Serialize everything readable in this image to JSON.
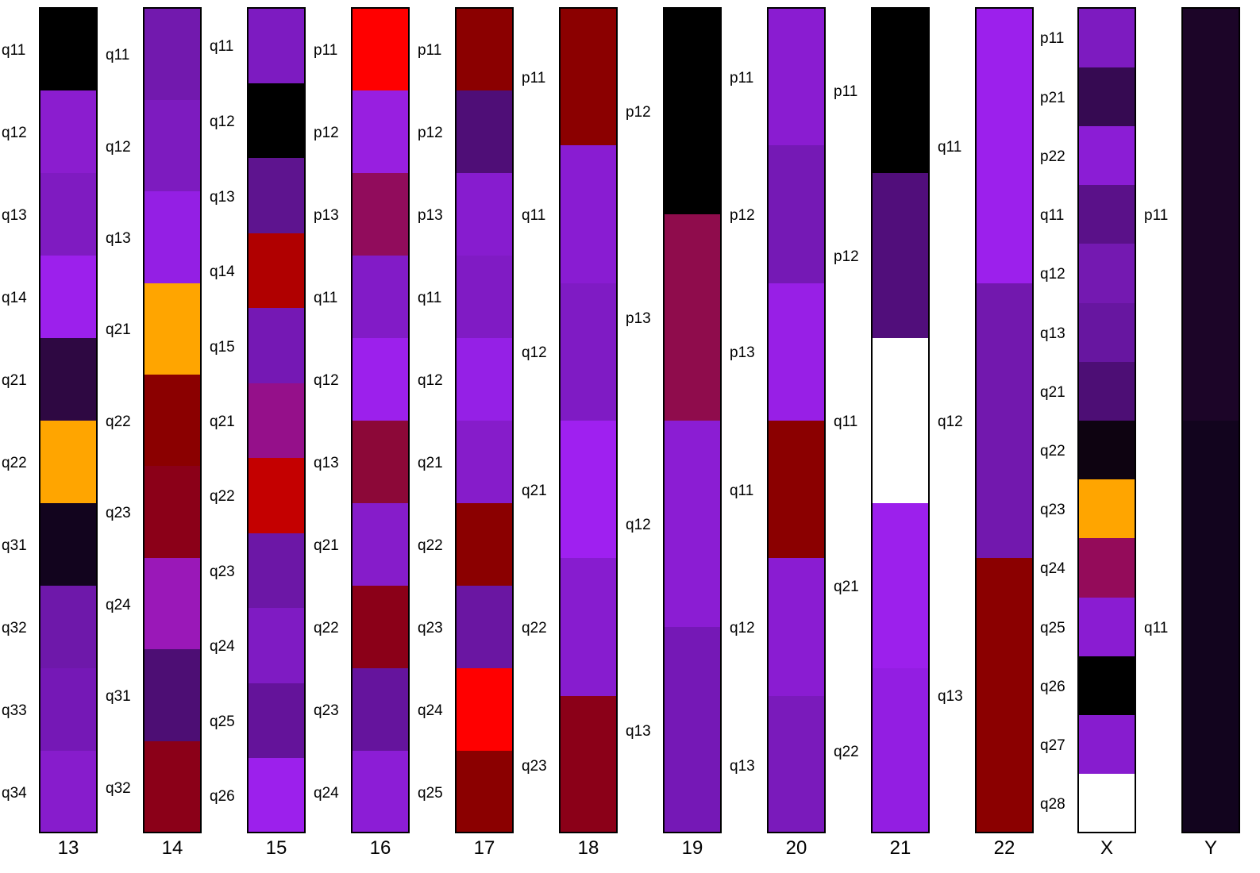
{
  "chart_data": {
    "type": "heatmap",
    "title": "",
    "chromosomes": [
      {
        "name": "13",
        "bands": [
          {
            "label": "q11",
            "color": "#000000"
          },
          {
            "label": "q12",
            "color": "#8b1dcf"
          },
          {
            "label": "q13",
            "color": "#7f1bc1"
          },
          {
            "label": "q14",
            "color": "#9c20ec"
          },
          {
            "label": "q21",
            "color": "#2e0842"
          },
          {
            "label": "q22",
            "color": "#ffa500"
          },
          {
            "label": "q31",
            "color": "#12041e"
          },
          {
            "label": "q32",
            "color": "#6e18aa"
          },
          {
            "label": "q33",
            "color": "#7518b6"
          },
          {
            "label": "q34",
            "color": "#871ccc"
          }
        ]
      },
      {
        "name": "14",
        "bands": [
          {
            "label": "q11",
            "color": "#7219ae"
          },
          {
            "label": "q12",
            "color": "#7d1bbf"
          },
          {
            "label": "q13",
            "color": "#941fe4"
          },
          {
            "label": "q21",
            "color": "#ffa500"
          },
          {
            "label": "q22",
            "color": "#8b0000"
          },
          {
            "label": "q23",
            "color": "#8b0018"
          },
          {
            "label": "q24",
            "color": "#9a18b8"
          },
          {
            "label": "q31",
            "color": "#4d0e74"
          },
          {
            "label": "q32",
            "color": "#8b0018"
          }
        ]
      },
      {
        "name": "15",
        "bands": [
          {
            "label": "q11",
            "color": "#7d1bc1"
          },
          {
            "label": "q12",
            "color": "#000000"
          },
          {
            "label": "q13",
            "color": "#5e148f"
          },
          {
            "label": "q14",
            "color": "#b00000"
          },
          {
            "label": "q15",
            "color": "#7518b4"
          },
          {
            "label": "q21",
            "color": "#95108a"
          },
          {
            "label": "q22",
            "color": "#c40000"
          },
          {
            "label": "q23",
            "color": "#6c17a6"
          },
          {
            "label": "q24",
            "color": "#7f1bc3"
          },
          {
            "label": "q25",
            "color": "#64139a"
          },
          {
            "label": "q26",
            "color": "#9c20ec"
          }
        ]
      },
      {
        "name": "16",
        "bands": [
          {
            "label": "p11",
            "color": "#ff0000"
          },
          {
            "label": "p12",
            "color": "#981fe0"
          },
          {
            "label": "p13",
            "color": "#910c5c"
          },
          {
            "label": "q11",
            "color": "#821bc7"
          },
          {
            "label": "q12",
            "color": "#9c20ec"
          },
          {
            "label": "q21",
            "color": "#8c0838"
          },
          {
            "label": "q22",
            "color": "#861cca"
          },
          {
            "label": "q23",
            "color": "#8b0018"
          },
          {
            "label": "q24",
            "color": "#65149d"
          },
          {
            "label": "q25",
            "color": "#8c1dd6"
          }
        ]
      },
      {
        "name": "17",
        "bands": [
          {
            "label": "p11",
            "color": "#8b0000"
          },
          {
            "label": "p12",
            "color": "#4f0e77"
          },
          {
            "label": "p13",
            "color": "#871ccf"
          },
          {
            "label": "q11",
            "color": "#801bc4"
          },
          {
            "label": "q12",
            "color": "#9520e6"
          },
          {
            "label": "q21",
            "color": "#861cca"
          },
          {
            "label": "q22",
            "color": "#8b0000"
          },
          {
            "label": "q23",
            "color": "#6a16a2"
          },
          {
            "label": "q24",
            "color": "#ff0000"
          },
          {
            "label": "q25",
            "color": "#8b0000"
          }
        ]
      },
      {
        "name": "18",
        "bands": [
          {
            "label": "p11",
            "color": "#8b0000"
          },
          {
            "label": "p12",
            "color": "#891cd2"
          },
          {
            "label": "p13",
            "color": "#7f1bc4"
          },
          {
            "label": "q12",
            "color": "#9f20f0"
          },
          {
            "label": "q13",
            "color": "#871ccf"
          },
          {
            "label": "q21",
            "color": "#8b0018"
          }
        ]
      },
      {
        "name": "19",
        "bands": [
          {
            "label": "p11",
            "color": "#000000"
          },
          {
            "label": "p12",
            "color": "#8f0c4c"
          },
          {
            "label": "p13",
            "color": "#8b1dd3"
          },
          {
            "label": "q11",
            "color": "#7518b6"
          }
        ]
      },
      {
        "name": "20",
        "bands": [
          {
            "label": "q12",
            "color": "#8a1cd1"
          },
          {
            "label": "q13",
            "color": "#7519b5"
          },
          {
            "label": "p11",
            "color": "#981fe6"
          },
          {
            "label": "p12",
            "color": "#8b0000"
          },
          {
            "label": "q11",
            "color": "#8a1cd2"
          },
          {
            "label": "q21",
            "color": "#7a1abb"
          }
        ]
      },
      {
        "name": "21",
        "bands": [
          {
            "label": "q22",
            "color": "#000000"
          },
          {
            "label": "q11",
            "color": "#510e7b"
          },
          {
            "label": "q12",
            "color": "#ffffff"
          },
          {
            "label": "q13",
            "color": "#9c20ec"
          },
          {
            "label": "",
            "color": "#931ee2"
          }
        ]
      },
      {
        "name": "22",
        "bands": [
          {
            "label": "p11",
            "color": "#9c20ec"
          },
          {
            "label": "p21",
            "color": "#7218ae"
          },
          {
            "label": "p22",
            "color": "#8b0000"
          }
        ]
      },
      {
        "name": "X",
        "bands": [
          {
            "label": "q11",
            "color": "#7d1bc0"
          },
          {
            "label": "q12",
            "color": "#360a52"
          },
          {
            "label": "q13",
            "color": "#8b1dd5"
          },
          {
            "label": "q21",
            "color": "#5a1189"
          },
          {
            "label": "q22",
            "color": "#7419b1"
          },
          {
            "label": "q23",
            "color": "#6716a0"
          },
          {
            "label": "q24",
            "color": "#4d0e75"
          },
          {
            "label": "q25",
            "color": "#0e0311"
          },
          {
            "label": "q26",
            "color": "#ffa500"
          },
          {
            "label": "q27",
            "color": "#940b5a"
          },
          {
            "label": "q28",
            "color": "#8a1cd2"
          },
          {
            "label": "",
            "color": "#000000"
          },
          {
            "label": "",
            "color": "#871ccf"
          }
        ]
      },
      {
        "name": "Y",
        "bands": [
          {
            "label": "p11",
            "color": "#1c0528"
          },
          {
            "label": "q11",
            "color": "#12041e"
          }
        ]
      }
    ],
    "label_columns": [
      {
        "labels": [
          "q11",
          "q12",
          "q13",
          "q14",
          "q21",
          "q22",
          "q31",
          "q32",
          "q33",
          "q34"
        ]
      },
      {
        "labels": [
          "q11",
          "q12",
          "q13",
          "q21",
          "q22",
          "q23",
          "q24",
          "q31",
          "q32"
        ]
      },
      {
        "labels": [
          "q11",
          "q12",
          "q13",
          "q14",
          "q15",
          "q21",
          "q22",
          "q23",
          "q24",
          "q25",
          "q26"
        ]
      },
      {
        "labels": [
          "p11",
          "p12",
          "p13",
          "q11",
          "q12",
          "q13",
          "q21",
          "q22",
          "q23",
          "q24"
        ]
      },
      {
        "labels": [
          "p11",
          "p12",
          "p13",
          "q11",
          "q12",
          "q21",
          "q22",
          "q23",
          "q24",
          "q25"
        ]
      },
      {
        "labels": [
          "p11",
          "q11",
          "q12",
          "q21",
          "q22",
          "q23"
        ]
      },
      {
        "labels": [
          "p12",
          "p13",
          "q12",
          "q13"
        ]
      },
      {
        "labels": [
          "p11",
          "p12",
          "p13",
          "q11",
          "q12",
          "q13"
        ]
      },
      {
        "labels": [
          "p11",
          "p12",
          "q11",
          "q21",
          "q22"
        ]
      },
      {
        "labels": [
          "q11",
          "q12",
          "q13"
        ]
      },
      {
        "labels": [
          "p11",
          "p21",
          "p22",
          "q11",
          "q12",
          "q13",
          "q21",
          "q22",
          "q23",
          "q24",
          "q25",
          "q26",
          "q27",
          "q28"
        ]
      },
      {
        "labels": [
          "p11",
          "q11"
        ]
      }
    ]
  }
}
